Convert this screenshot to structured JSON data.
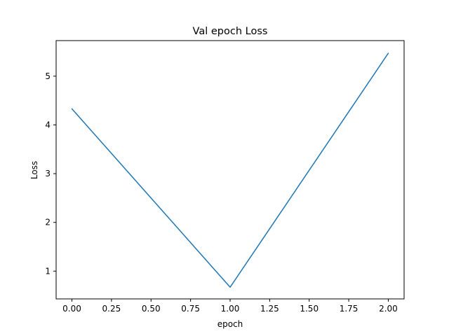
{
  "chart_data": {
    "type": "line",
    "title": "Val epoch Loss",
    "xlabel": "epoch",
    "ylabel": "Loss",
    "xlim": [
      -0.1,
      2.1
    ],
    "ylim": [
      0.43,
      5.73
    ],
    "xticks": [
      0.0,
      0.25,
      0.5,
      0.75,
      1.0,
      1.25,
      1.5,
      1.75,
      2.0
    ],
    "xtick_labels": [
      "0.00",
      "0.25",
      "0.50",
      "0.75",
      "1.00",
      "1.25",
      "1.50",
      "1.75",
      "2.00"
    ],
    "yticks": [
      1,
      2,
      3,
      4,
      5
    ],
    "ytick_labels": [
      "1",
      "2",
      "3",
      "4",
      "5"
    ],
    "grid": false,
    "series": [
      {
        "x": [
          0,
          1,
          2
        ],
        "values": [
          4.33,
          0.67,
          5.47
        ],
        "color": "#1f77b4"
      }
    ]
  }
}
